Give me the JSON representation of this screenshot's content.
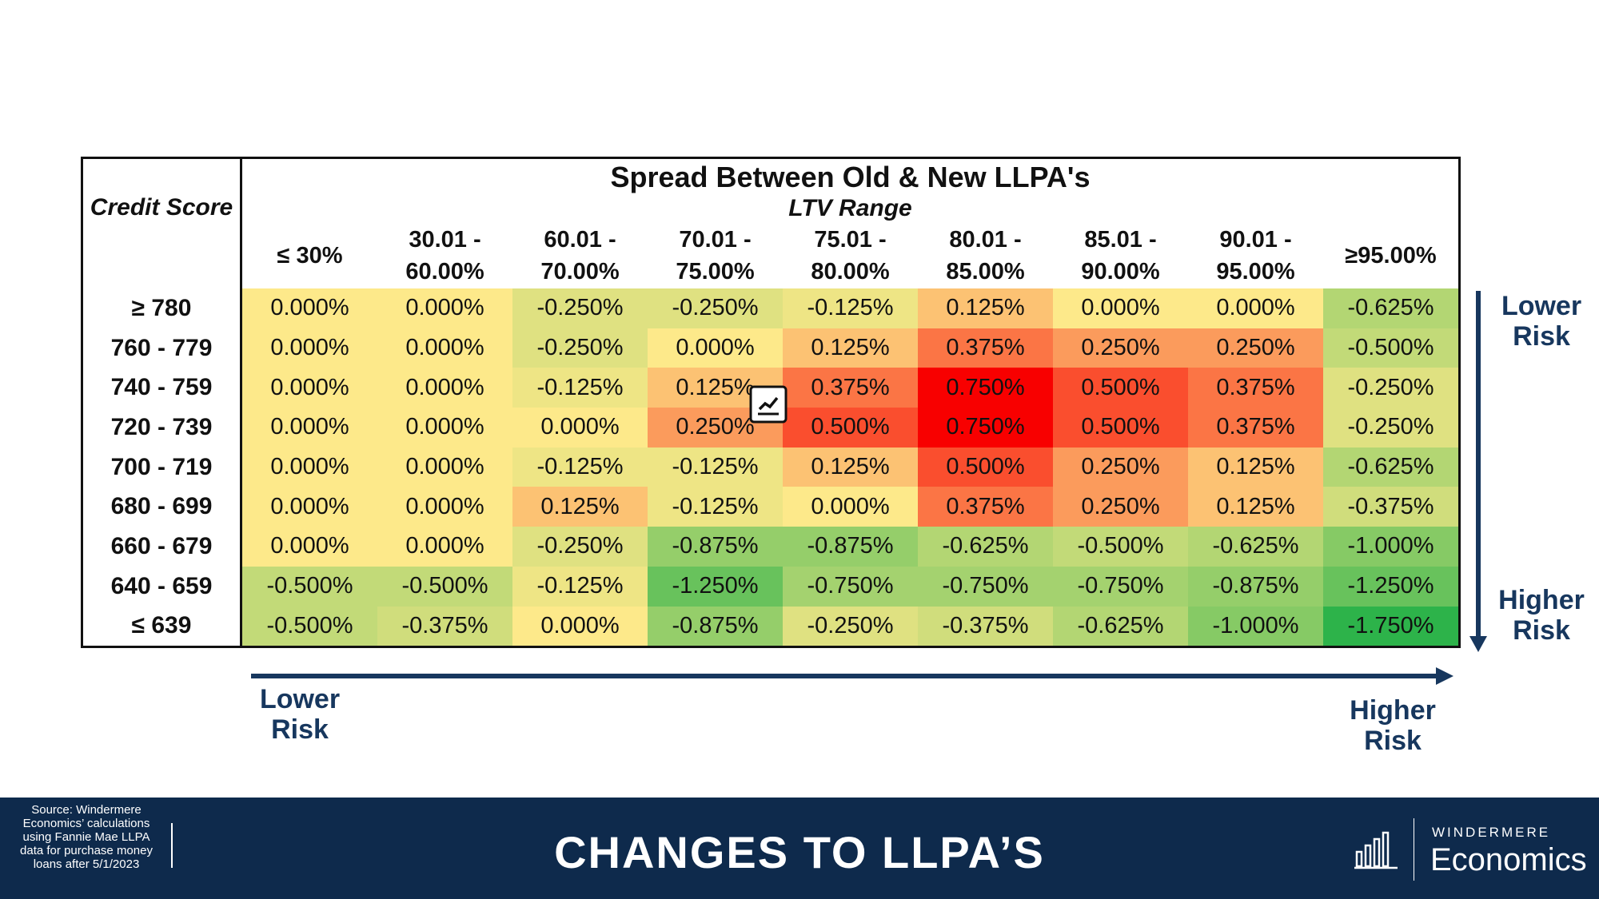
{
  "slide_title": "CHANGES TO LLPA’S",
  "source": "Source: Windermere Economics’ calculations using Fannie Mae LLPA data for  purchase money loans after 5/1/2023",
  "brand": {
    "top": "WINDERMERE",
    "bottom": "Economics"
  },
  "risk_labels": {
    "right_top": "Lower Risk",
    "right_bottom": "Higher Risk",
    "bottom_left": "Lower Risk",
    "bottom_right": "Higher Risk"
  },
  "colors": {
    "navy": "#0e2a4c",
    "arrow": "#17375e"
  },
  "chart_data": {
    "type": "heatmap",
    "title": "Spread Between Old & New LLPA's",
    "subtitle": "LTV Range",
    "row_axis_label": "Credit Score",
    "columns": [
      "≤ 30%",
      "30.01 -\n60.00%",
      "60.01 -\n70.00%",
      "70.01 -\n75.00%",
      "75.01 -\n80.00%",
      "80.01 -\n85.00%",
      "85.01 -\n90.00%",
      "90.01 -\n95.00%",
      "≥95.00%"
    ],
    "rows": [
      "≥ 780",
      "760 - 779",
      "740 - 759",
      "720 - 739",
      "700 - 719",
      "680 - 699",
      "660 - 679",
      "640 - 659",
      "≤ 639"
    ],
    "values": [
      [
        0.0,
        0.0,
        -0.25,
        -0.25,
        -0.125,
        0.125,
        0.0,
        0.0,
        -0.625
      ],
      [
        0.0,
        0.0,
        -0.25,
        0.0,
        0.125,
        0.375,
        0.25,
        0.25,
        -0.5
      ],
      [
        0.0,
        0.0,
        -0.125,
        0.125,
        0.375,
        0.75,
        0.5,
        0.375,
        -0.25
      ],
      [
        0.0,
        0.0,
        0.0,
        0.25,
        0.5,
        0.75,
        0.5,
        0.375,
        -0.25
      ],
      [
        0.0,
        0.0,
        -0.125,
        -0.125,
        0.125,
        0.5,
        0.25,
        0.125,
        -0.625
      ],
      [
        0.0,
        0.0,
        0.125,
        -0.125,
        0.0,
        0.375,
        0.25,
        0.125,
        -0.375
      ],
      [
        0.0,
        0.0,
        -0.25,
        -0.875,
        -0.875,
        -0.625,
        -0.5,
        -0.625,
        -1.0
      ],
      [
        -0.5,
        -0.5,
        -0.125,
        -1.25,
        -0.75,
        -0.75,
        -0.75,
        -0.875,
        -1.25
      ],
      [
        -0.5,
        -0.375,
        0.0,
        -0.875,
        -0.25,
        -0.375,
        -0.625,
        -1.0,
        -1.75
      ]
    ],
    "value_format": "percent_3dp",
    "color_scale": {
      "negative": "#2db34a",
      "zero": "#fde98a",
      "positive": "#f80000"
    }
  }
}
